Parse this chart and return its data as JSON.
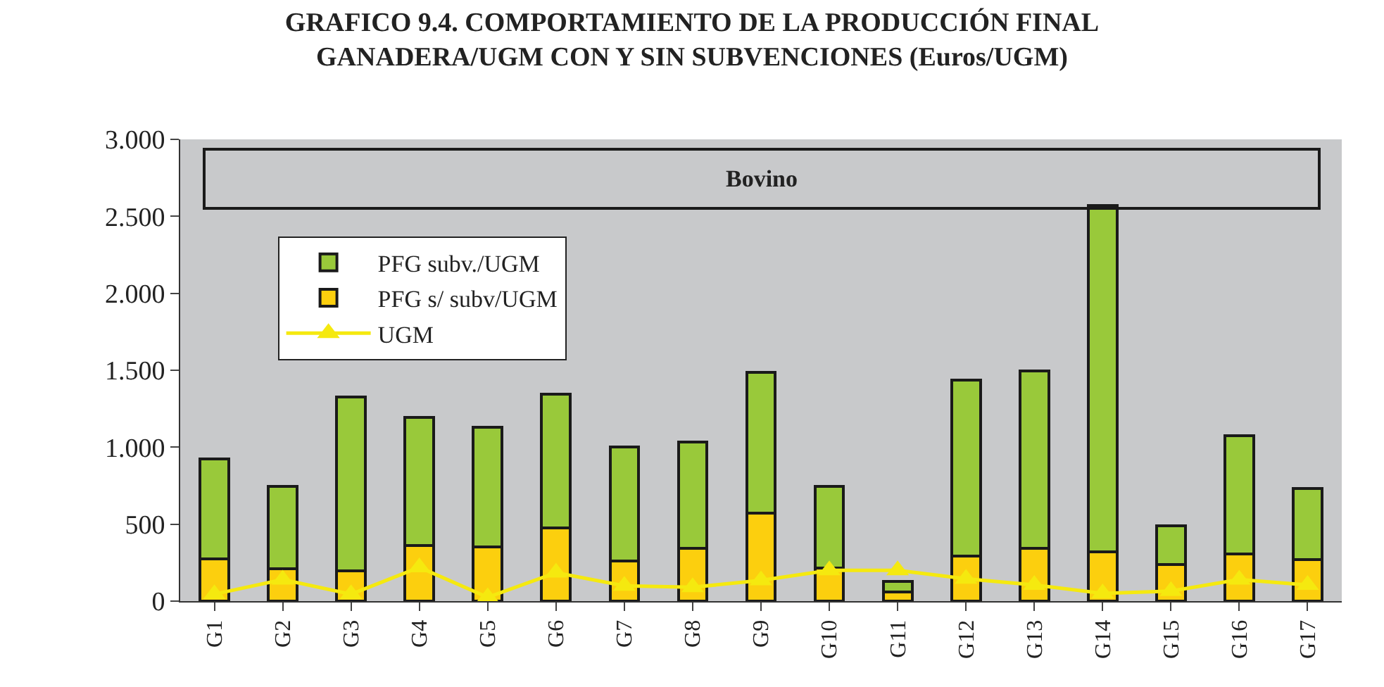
{
  "chart_data": {
    "type": "bar",
    "title": "GRAFICO 9.4. COMPORTAMIENTO DE LA PRODUCCIÓN FINAL\nGANADERA/UGM CON Y SIN SUBVENCIONES (Euros/UGM)",
    "categories": [
      "G1",
      "G2",
      "G3",
      "G4",
      "G5",
      "G6",
      "G7",
      "G8",
      "G9",
      "G10",
      "G11",
      "G12",
      "G13",
      "G14",
      "G15",
      "G16",
      "G17"
    ],
    "stacked": true,
    "series": [
      {
        "name": "PFG s/ subv/UGM",
        "color": "#fccf0e",
        "values": [
          275,
          210,
          195,
          360,
          350,
          475,
          260,
          345,
          570,
          215,
          60,
          295,
          345,
          320,
          240,
          305,
          270
        ]
      },
      {
        "name": "PFG subv./UGM",
        "color": "#99c93a",
        "values": [
          650,
          535,
          1130,
          835,
          780,
          870,
          740,
          690,
          915,
          530,
          70,
          1140,
          1150,
          2250,
          250,
          770,
          460
        ]
      },
      {
        "name": "UGM",
        "type": "line",
        "color": "#f5e90f",
        "marker": "triangle",
        "values": [
          45,
          140,
          45,
          220,
          25,
          185,
          100,
          90,
          135,
          200,
          200,
          145,
          105,
          50,
          65,
          140,
          105
        ]
      }
    ],
    "ylim": [
      0,
      3000
    ],
    "yticks": [
      0,
      500,
      {
        "value": 1000,
        "label": "1.000"
      },
      {
        "value": 1500,
        "label": "1.500"
      },
      {
        "value": 2000,
        "label": "2.000"
      },
      {
        "value": 2500,
        "label": "2.500"
      },
      {
        "value": 3000,
        "label": "3.000"
      }
    ],
    "grid": false,
    "legend": "top left",
    "annotations": [
      "Bovino"
    ]
  }
}
